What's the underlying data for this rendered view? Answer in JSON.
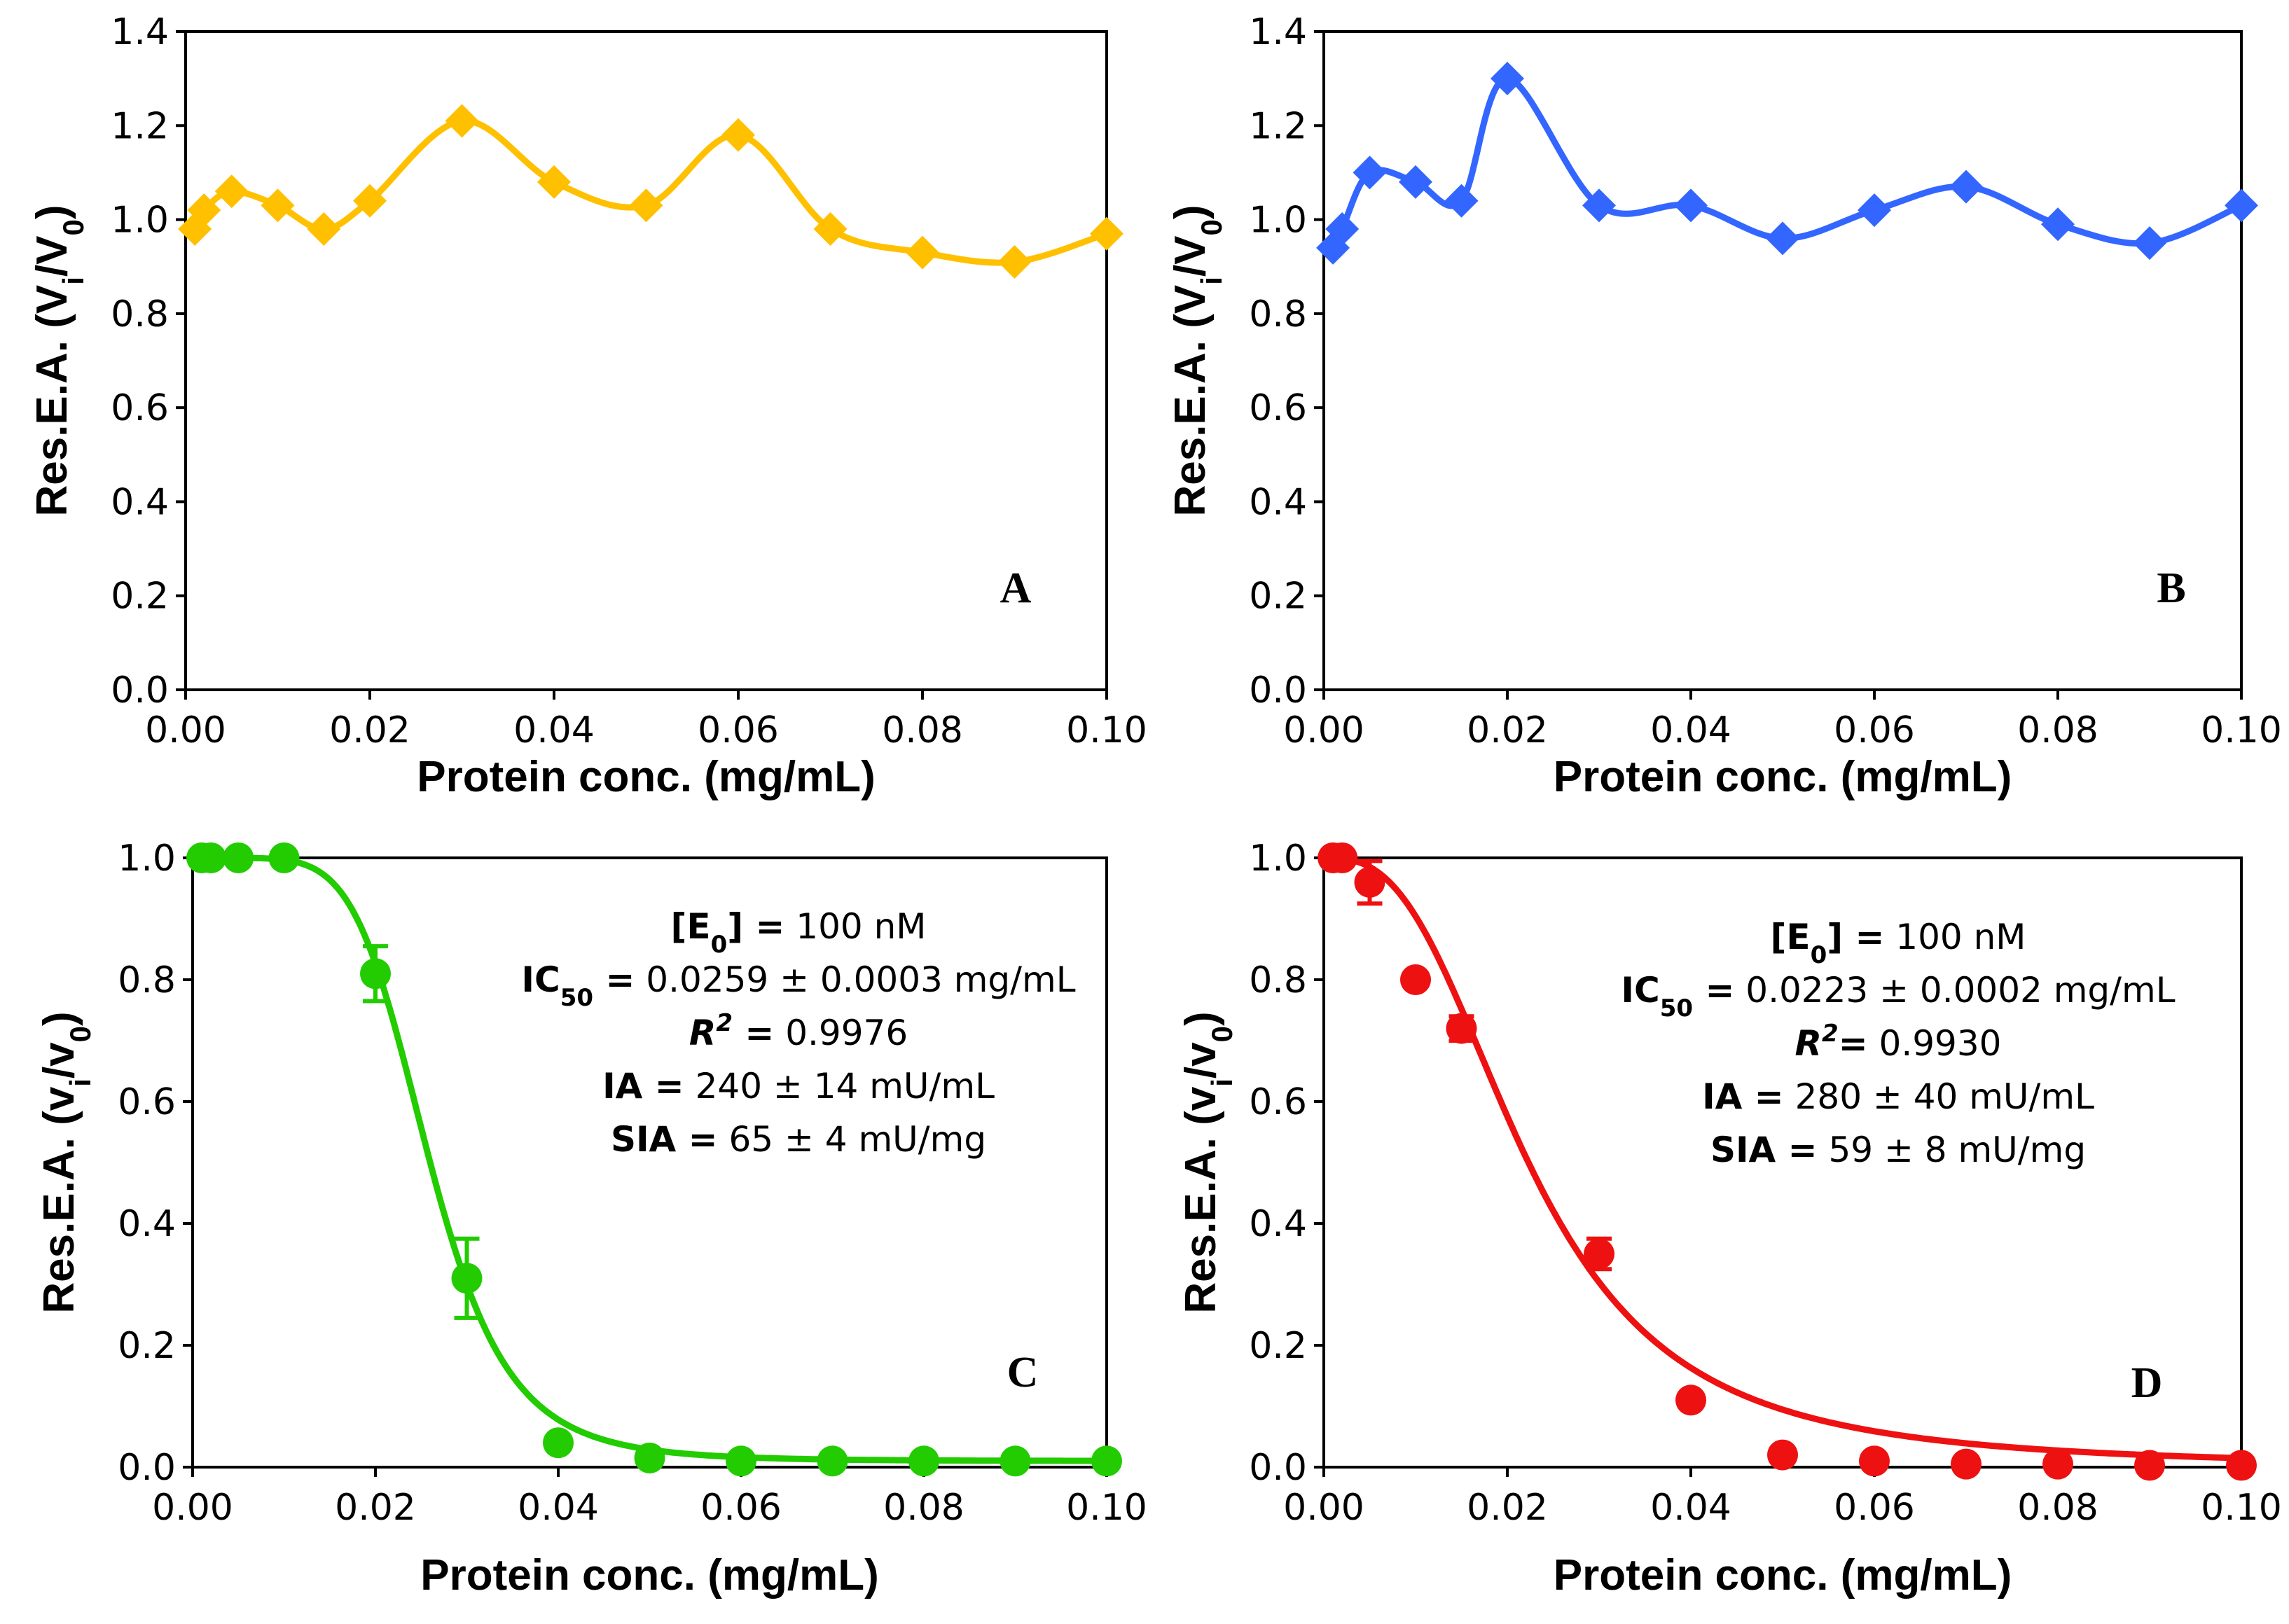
{
  "chart_data": [
    {
      "panel": "A",
      "type": "line",
      "marker": "diamond",
      "color": "#FFC000",
      "xlabel": "Protein conc. (mg/mL)",
      "ylabel": {
        "main": "Res.E.A. (V",
        "sub": "i",
        "mid": "/V",
        "sub2": "0",
        "end": ")"
      },
      "xlim": [
        0,
        0.1
      ],
      "ylim": [
        0,
        1.4
      ],
      "xticks": [
        "0.00",
        "0.02",
        "0.04",
        "0.06",
        "0.08",
        "0.10"
      ],
      "yticks": [
        "0.0",
        "0.2",
        "0.4",
        "0.6",
        "0.8",
        "1.0",
        "1.2",
        "1.4"
      ],
      "x": [
        0.001,
        0.002,
        0.005,
        0.01,
        0.015,
        0.02,
        0.03,
        0.04,
        0.05,
        0.06,
        0.07,
        0.08,
        0.09,
        0.1
      ],
      "y": [
        0.98,
        1.02,
        1.06,
        1.03,
        0.98,
        1.04,
        1.21,
        1.08,
        1.03,
        1.18,
        0.98,
        0.93,
        0.91,
        0.97
      ],
      "grid": false
    },
    {
      "panel": "B",
      "type": "line",
      "marker": "diamond",
      "color": "#3366FF",
      "xlabel": "Protein conc. (mg/mL)",
      "ylabel": {
        "main": "Res.E.A. (V",
        "sub": "i",
        "mid": "/V",
        "sub2": "0",
        "end": ")"
      },
      "xlim": [
        0,
        0.1
      ],
      "ylim": [
        0,
        1.4
      ],
      "xticks": [
        "0.00",
        "0.02",
        "0.04",
        "0.06",
        "0.08",
        "0.10"
      ],
      "yticks": [
        "0.0",
        "0.2",
        "0.4",
        "0.6",
        "0.8",
        "1.0",
        "1.2",
        "1.4"
      ],
      "x": [
        0.001,
        0.002,
        0.005,
        0.01,
        0.015,
        0.02,
        0.03,
        0.04,
        0.05,
        0.06,
        0.07,
        0.08,
        0.09,
        0.1
      ],
      "y": [
        0.94,
        0.98,
        1.1,
        1.08,
        1.04,
        1.3,
        1.03,
        1.03,
        0.96,
        1.02,
        1.07,
        0.99,
        0.95,
        1.03
      ],
      "grid": false
    },
    {
      "panel": "C",
      "type": "scatter",
      "marker": "circle",
      "color": "#22CC00",
      "xlabel": "Protein conc. (mg/mL)",
      "ylabel": {
        "main": "Res.E.A. (v",
        "sub": "i",
        "mid": "/v",
        "sub2": "0",
        "end": ")"
      },
      "xlim": [
        0,
        0.1
      ],
      "ylim": [
        0,
        1.0
      ],
      "xticks": [
        "0.00",
        "0.02",
        "0.04",
        "0.06",
        "0.08",
        "0.10"
      ],
      "yticks": [
        "0.0",
        "0.2",
        "0.4",
        "0.6",
        "0.8",
        "1.0"
      ],
      "x": [
        0.001,
        0.002,
        0.005,
        0.01,
        0.02,
        0.03,
        0.04,
        0.05,
        0.06,
        0.07,
        0.08,
        0.09,
        0.1
      ],
      "y": [
        1.0,
        1.0,
        1.0,
        1.0,
        0.81,
        0.31,
        0.04,
        0.015,
        0.01,
        0.01,
        0.01,
        0.01,
        0.01
      ],
      "error": [
        0,
        0,
        0,
        0,
        0.045,
        0.065,
        0,
        0,
        0,
        0,
        0,
        0,
        0
      ],
      "fit": {
        "top": 1.0,
        "bottom": 0.01,
        "ic50": 0.0259,
        "hill": 6.0
      },
      "annotations": [
        {
          "bold": "[E",
          "boldsub": "0",
          "bold2": "] =",
          "text": " 100 nM"
        },
        {
          "bold": "IC",
          "boldsub": "50",
          "bold2": " =",
          "text": " 0.0259 ± 0.0003 mg/mL"
        },
        {
          "bolditalic": "R",
          "sup": "2",
          "bold2": " =",
          "text": "  0.9976"
        },
        {
          "bold": "IA",
          "boldsub": "",
          "bold2": " =",
          "text": " 240 ± 14 mU/mL"
        },
        {
          "bold": "SIA",
          "boldsub": "",
          "bold2": " =",
          "text": " 65 ± 4 mU/mg"
        }
      ],
      "grid": false
    },
    {
      "panel": "D",
      "type": "scatter",
      "marker": "circle",
      "color": "#EE1111",
      "xlabel": "Protein conc. (mg/mL)",
      "ylabel": {
        "main": "Res.E.A. (v",
        "sub": "i",
        "mid": "/v",
        "sub2": "0",
        "end": ")"
      },
      "xlim": [
        0,
        0.1
      ],
      "ylim": [
        0,
        1.0
      ],
      "xticks": [
        "0.00",
        "0.02",
        "0.04",
        "0.06",
        "0.08",
        "0.10"
      ],
      "yticks": [
        "0.0",
        "0.2",
        "0.4",
        "0.6",
        "0.8",
        "1.0"
      ],
      "x": [
        0.001,
        0.002,
        0.005,
        0.01,
        0.015,
        0.03,
        0.04,
        0.05,
        0.06,
        0.07,
        0.08,
        0.09,
        0.1
      ],
      "y": [
        1.0,
        1.0,
        0.96,
        0.8,
        0.72,
        0.35,
        0.11,
        0.02,
        0.01,
        0.005,
        0.005,
        0.003,
        0.003
      ],
      "error": [
        0,
        0,
        0.035,
        0,
        0.02,
        0.025,
        0,
        0,
        0,
        0,
        0,
        0,
        0
      ],
      "fit": {
        "top": 1.0,
        "bottom": 0.0,
        "ic50": 0.0223,
        "hill": 2.8
      },
      "annotations": [
        {
          "bold": "[E",
          "boldsub": "0",
          "bold2": "] =",
          "text": " 100 nM"
        },
        {
          "bold": "IC",
          "boldsub": "50",
          "bold2": " =",
          "text": " 0.0223 ± 0.0002 mg/mL"
        },
        {
          "bolditalic": "R",
          "sup": "2",
          "bold2": "=",
          "text": " 0.9930"
        },
        {
          "bold": "IA",
          "boldsub": "",
          "bold2": " =",
          "text": " 280 ± 40 mU/mL"
        },
        {
          "bold": "SIA",
          "boldsub": "",
          "bold2": " =",
          "text": " 59 ± 8 mU/mg"
        }
      ],
      "grid": false
    }
  ]
}
